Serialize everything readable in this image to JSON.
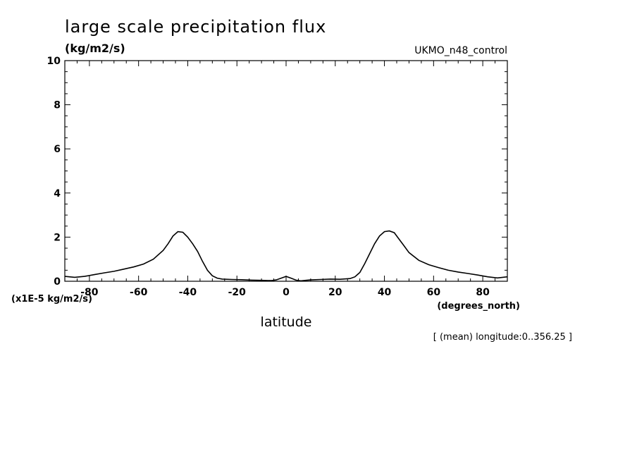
{
  "chart_data": {
    "type": "line",
    "title": "large scale precipitation flux",
    "units": "(kg/m2/s)",
    "dataset": "UKMO_n48_control",
    "scale_factor_label": "(x1E-5 kg/m2/s)",
    "xlabel": "latitude",
    "x_units": "(degrees_north)",
    "note": "[ (mean) longitude:0..356.25 ]",
    "xlim": [
      -90,
      90
    ],
    "ylim": [
      0,
      10
    ],
    "x_ticks": [
      -80,
      -60,
      -40,
      -20,
      0,
      20,
      40,
      60,
      80
    ],
    "y_ticks": [
      0,
      2,
      4,
      6,
      8,
      10
    ],
    "x_tick_labels": [
      "-80",
      "-60",
      "-40",
      "-20",
      "0",
      "20",
      "40",
      "60",
      "80"
    ],
    "y_tick_labels": [
      "0",
      "2",
      "4",
      "6",
      "8",
      "10"
    ],
    "grid": false,
    "series": [
      {
        "x": [
          -90,
          -86,
          -82,
          -78,
          -74,
          -70,
          -66,
          -62,
          -58,
          -54,
          -50,
          -48,
          -46,
          -44,
          -42,
          -40,
          -38,
          -36,
          -34,
          -32,
          -30,
          -28,
          -26,
          -22,
          -18,
          -14,
          -10,
          -6,
          -4,
          -2,
          0,
          2,
          4,
          6,
          8,
          10,
          14,
          18,
          22,
          26,
          28,
          30,
          32,
          34,
          36,
          38,
          40,
          42,
          44,
          46,
          48,
          50,
          54,
          58,
          62,
          66,
          70,
          74,
          78,
          82,
          86,
          90
        ],
        "y": [
          0.22,
          0.18,
          0.22,
          0.3,
          0.38,
          0.45,
          0.55,
          0.65,
          0.78,
          1.0,
          1.4,
          1.7,
          2.05,
          2.25,
          2.22,
          2.0,
          1.7,
          1.35,
          0.9,
          0.5,
          0.25,
          0.14,
          0.1,
          0.08,
          0.07,
          0.05,
          0.04,
          0.03,
          0.06,
          0.14,
          0.22,
          0.14,
          0.05,
          0.02,
          0.04,
          0.06,
          0.08,
          0.1,
          0.09,
          0.12,
          0.2,
          0.4,
          0.8,
          1.25,
          1.7,
          2.05,
          2.25,
          2.28,
          2.2,
          1.9,
          1.6,
          1.3,
          0.95,
          0.75,
          0.62,
          0.5,
          0.42,
          0.35,
          0.28,
          0.2,
          0.15,
          0.2
        ]
      }
    ],
    "color": "#000000"
  }
}
